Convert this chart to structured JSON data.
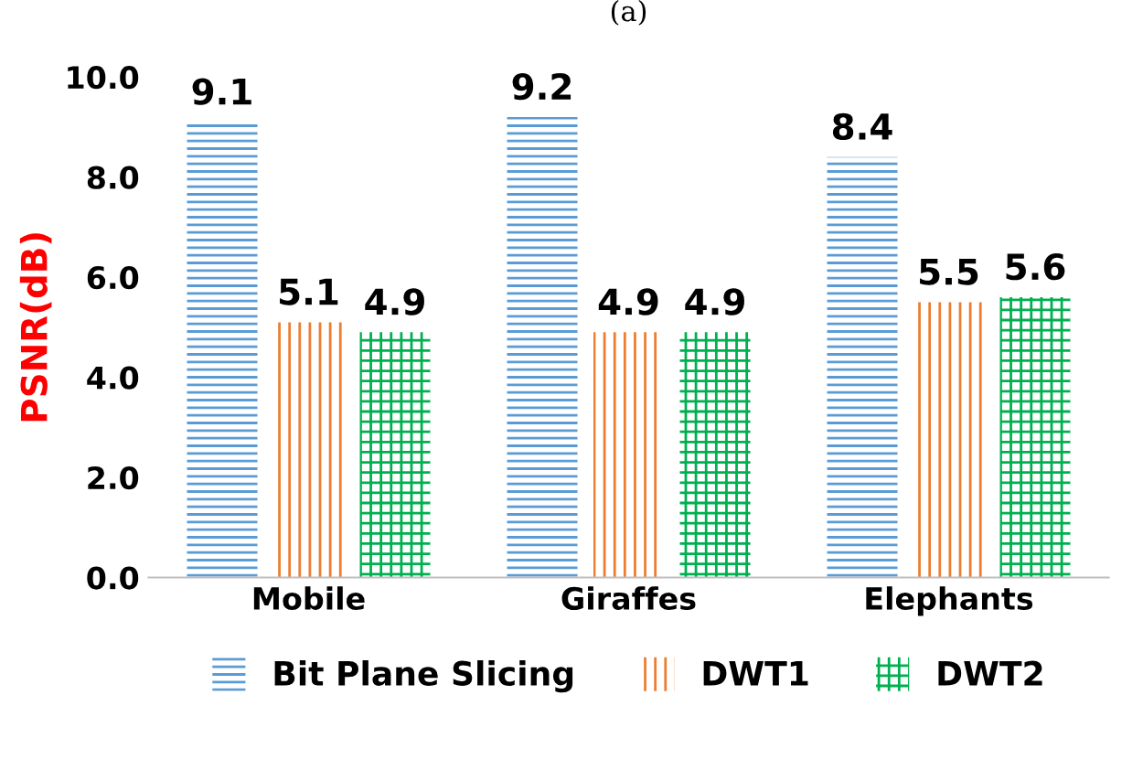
{
  "chart_data": {
    "type": "bar",
    "title": "(a)",
    "ylabel": "PSNR(dB)",
    "categories": [
      "Mobile",
      "Giraffes",
      "Elephants"
    ],
    "series": [
      {
        "name": "Bit Plane Slicing",
        "color": "#5b9bd5",
        "values": [
          9.1,
          9.2,
          8.4
        ]
      },
      {
        "name": "DWT1",
        "color": "#ed7d31",
        "values": [
          5.1,
          4.9,
          5.5
        ]
      },
      {
        "name": "DWT2",
        "color": "#00b050",
        "values": [
          4.9,
          4.9,
          5.6
        ]
      }
    ],
    "ylim": [
      0,
      10
    ],
    "yticks": [
      {
        "value": 0,
        "label": "0.0"
      },
      {
        "value": 2,
        "label": "2.0"
      },
      {
        "value": 4,
        "label": "4.0"
      },
      {
        "value": 6,
        "label": "6.0"
      },
      {
        "value": 8,
        "label": "8.0"
      },
      {
        "value": 10,
        "label": "10.0"
      }
    ],
    "data_labels": true,
    "legend": "bottom",
    "grid": false
  }
}
